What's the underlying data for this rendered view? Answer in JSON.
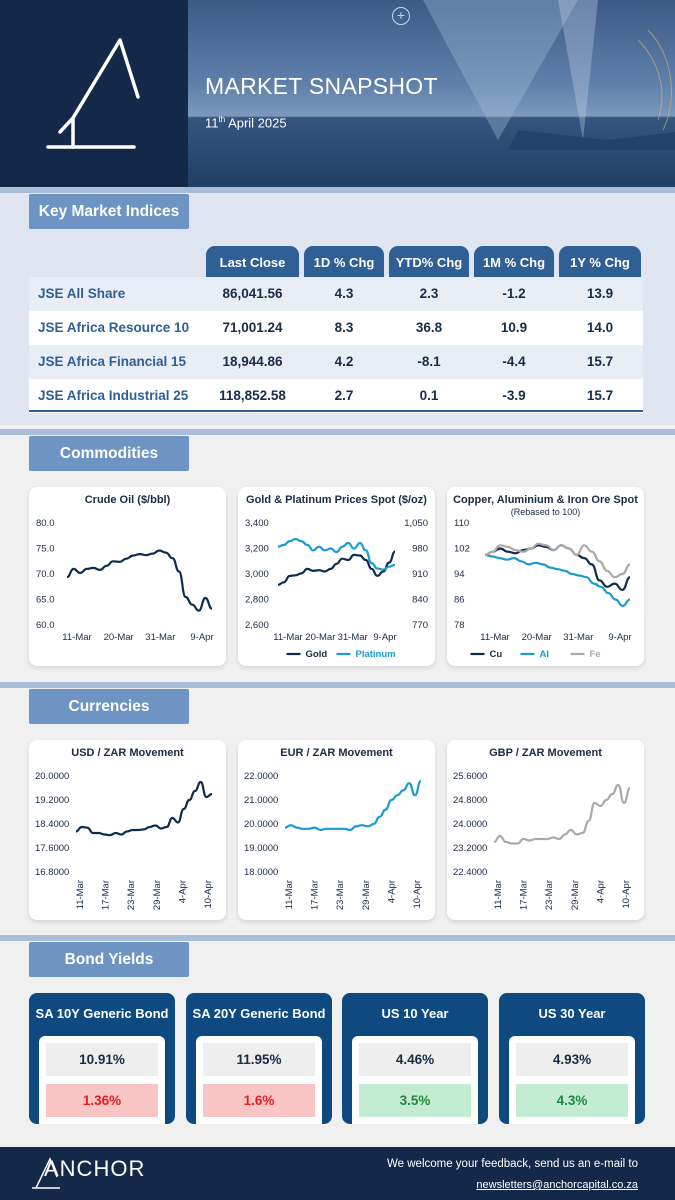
{
  "header": {
    "title": "MARKET SNAPSHOT",
    "date_day": "11",
    "date_suffix": "th",
    "date_rest": " April 2025"
  },
  "sections": {
    "indices": "Key Market Indices",
    "commodities": "Commodities",
    "currencies": "Currencies",
    "bonds": "Bond Yields"
  },
  "indices": {
    "columns": [
      "Last Close",
      "1D % Chg",
      "YTD% Chg",
      "1M % Chg",
      "1Y % Chg"
    ],
    "rows": [
      {
        "name": "JSE All Share",
        "last": "86,041.56",
        "d1": "4.3",
        "ytd": "2.3",
        "m1": "-1.2",
        "y1": "13.9"
      },
      {
        "name": "JSE Africa Resource 10",
        "last": "71,001.24",
        "d1": "8.3",
        "ytd": "36.8",
        "m1": "10.9",
        "y1": "14.0"
      },
      {
        "name": "JSE Africa Financial 15",
        "last": "18,944.86",
        "d1": "4.2",
        "ytd": "-8.1",
        "m1": "-4.4",
        "y1": "15.7"
      },
      {
        "name": "JSE Africa Industrial 25",
        "last": "118,852.58",
        "d1": "2.7",
        "ytd": "0.1",
        "m1": "-3.9",
        "y1": "15.7"
      }
    ]
  },
  "chart_data": [
    {
      "type": "line",
      "title": "Crude Oil ($/bbl)",
      "ylim": [
        60,
        80
      ],
      "yticks": [
        "80.0",
        "75.0",
        "70.0",
        "65.0",
        "60.0"
      ],
      "xticks": [
        "11-Mar",
        "20-Mar",
        "31-Mar",
        "9-Apr"
      ],
      "colors": [
        "#0d2c4e"
      ],
      "series": [
        {
          "values": [
            69.4,
            71.0,
            70.2,
            71.0,
            71.2,
            70.8,
            71.6,
            72.5,
            72.4,
            73.0,
            73.6,
            73.9,
            73.7,
            74.0,
            74.6,
            74.2,
            73.1,
            70.5,
            65.5,
            64.0,
            62.8,
            65.3,
            63.2
          ]
        }
      ]
    },
    {
      "type": "line",
      "title": "Gold & Platinum Prices Spot ($/oz)",
      "ylim": [
        2600,
        3400
      ],
      "y2lim": [
        770,
        1050
      ],
      "yticks": [
        "3,400",
        "3,200",
        "3,000",
        "2,800",
        "2,600"
      ],
      "y2ticks": [
        "1,050",
        "980",
        "910",
        "840",
        "770"
      ],
      "xticks": [
        "11-Mar",
        "20-Mar",
        "31-Mar",
        "9-Apr"
      ],
      "colors": [
        "#0d2c4e",
        "#1a9bd0"
      ],
      "series": [
        {
          "name": "Gold",
          "values": [
            2915,
            2935,
            2985,
            2990,
            3005,
            3040,
            3025,
            3030,
            3020,
            3040,
            3080,
            3120,
            3110,
            3150,
            3145,
            3110,
            3040,
            2985,
            3020,
            3090,
            3175
          ]
        },
        {
          "name": "Platinum",
          "values": [
            985,
            990,
            1000,
            1006,
            1000,
            990,
            975,
            985,
            975,
            980,
            970,
            985,
            995,
            980,
            995,
            975,
            940,
            925,
            922,
            930,
            935
          ]
        }
      ]
    },
    {
      "type": "line",
      "title": "Copper, Aluminium & Iron Ore Spot",
      "subtitle": "(Rebased to 100)",
      "ylim": [
        78,
        110
      ],
      "yticks": [
        "110",
        "102",
        "94",
        "86",
        "78"
      ],
      "xticks": [
        "11-Mar",
        "20-Mar",
        "31-Mar",
        "9-Apr"
      ],
      "colors": [
        "#0d2c4e",
        "#1a9bd0",
        "#aaaaaa"
      ],
      "series": [
        {
          "name": "Cu",
          "values": [
            100,
            101,
            102,
            101,
            100.5,
            101.5,
            102,
            103,
            102.5,
            101.5,
            103,
            102,
            100,
            99,
            97,
            92,
            90,
            91,
            89,
            93
          ]
        },
        {
          "name": "Al",
          "values": [
            100,
            99.5,
            99,
            98.5,
            99,
            98,
            97,
            97.5,
            97,
            96,
            95.5,
            95,
            94,
            93.5,
            93,
            91,
            90,
            88,
            86,
            84,
            86
          ]
        },
        {
          "name": "Fe",
          "values": [
            100,
            101,
            103,
            102.5,
            101.5,
            101,
            102,
            103.5,
            103,
            101.5,
            103,
            102,
            100,
            103,
            101,
            98,
            95,
            93,
            94,
            97
          ]
        }
      ]
    },
    {
      "type": "line",
      "title": "USD / ZAR Movement",
      "ylim": [
        16.8,
        20.0
      ],
      "yticks": [
        "20.0000",
        "19.2000",
        "18.4000",
        "17.6000",
        "16.8000"
      ],
      "xticks": [
        "11-Mar",
        "17-Mar",
        "23-Mar",
        "29-Mar",
        "4-Apr",
        "10-Apr"
      ],
      "colors": [
        "#0d2c4e"
      ],
      "series": [
        {
          "values": [
            18.15,
            18.3,
            18.28,
            18.1,
            18.1,
            18.05,
            18.03,
            18.1,
            18.05,
            18.15,
            18.2,
            18.2,
            18.22,
            18.3,
            18.35,
            18.25,
            18.3,
            18.6,
            18.45,
            18.9,
            19.2,
            19.5,
            19.8,
            19.3,
            19.4
          ]
        }
      ]
    },
    {
      "type": "line",
      "title": "EUR / ZAR Movement",
      "ylim": [
        18.0,
        22.0
      ],
      "yticks": [
        "22.0000",
        "21.0000",
        "20.0000",
        "19.0000",
        "18.0000"
      ],
      "xticks": [
        "11-Mar",
        "17-Mar",
        "23-Mar",
        "29-Mar",
        "4-Apr",
        "10-Apr"
      ],
      "colors": [
        "#1a9bd0"
      ],
      "series": [
        {
          "values": [
            19.85,
            19.95,
            19.85,
            19.8,
            19.8,
            19.85,
            19.75,
            19.8,
            19.8,
            19.8,
            19.8,
            19.75,
            19.9,
            19.95,
            19.9,
            20.0,
            20.3,
            20.6,
            21.0,
            21.2,
            21.4,
            21.7,
            21.2,
            21.8
          ]
        }
      ]
    },
    {
      "type": "line",
      "title": "GBP / ZAR Movement",
      "ylim": [
        22.4,
        25.6
      ],
      "yticks": [
        "25.6000",
        "24.8000",
        "24.0000",
        "23.2000",
        "22.4000"
      ],
      "xticks": [
        "11-Mar",
        "17-Mar",
        "23-Mar",
        "29-Mar",
        "4-Apr",
        "10-Apr"
      ],
      "colors": [
        "#aaaaaa"
      ],
      "series": [
        {
          "values": [
            23.4,
            23.6,
            23.4,
            23.35,
            23.35,
            23.5,
            23.45,
            23.5,
            23.5,
            23.5,
            23.55,
            23.5,
            23.65,
            23.8,
            23.65,
            23.7,
            24.1,
            24.7,
            24.6,
            24.8,
            25.0,
            25.3,
            24.7,
            25.2
          ]
        }
      ]
    }
  ],
  "bonds": [
    {
      "title": "SA 10Y Generic Bond",
      "value": "10.91%",
      "change": "1.36%",
      "dir": "neg"
    },
    {
      "title": "SA 20Y Generic Bond",
      "value": "11.95%",
      "change": "1.6%",
      "dir": "neg"
    },
    {
      "title": "US 10 Year",
      "value": "4.46%",
      "change": "3.5%",
      "dir": "pos"
    },
    {
      "title": "US 30 Year",
      "value": "4.93%",
      "change": "4.3%",
      "dir": "pos"
    }
  ],
  "footer": {
    "logo": "ANCHOR",
    "message": "We welcome your feedback, send us an e-mail to",
    "email": "newsletters@anchorcapital.co.za"
  }
}
